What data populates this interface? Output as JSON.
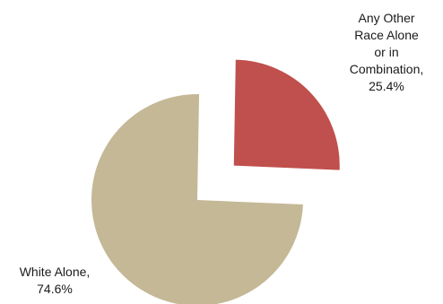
{
  "chart_data": {
    "type": "pie",
    "title": "",
    "exploded": true,
    "slices": [
      {
        "label_lines": [
          "White Alone,",
          "74.6%"
        ],
        "value": 74.6,
        "color": "#c4b896"
      },
      {
        "label_lines": [
          "Any Other",
          "Race Alone",
          "or in",
          "Combination,",
          "25.4%"
        ],
        "value": 25.4,
        "color": "#c0504d"
      }
    ],
    "legend": "none"
  }
}
